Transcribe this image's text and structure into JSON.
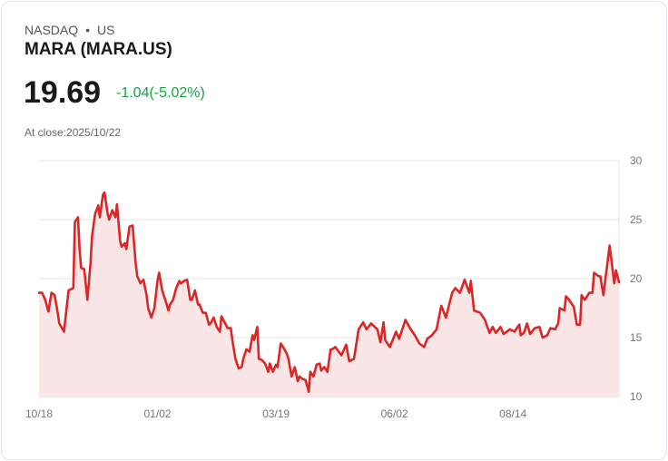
{
  "header": {
    "exchange": "NASDAQ",
    "separator": "•",
    "region": "US",
    "title": "MARA (MARA.US)",
    "price": "19.69",
    "change": "-1.04(-5.02%)",
    "close_label": "At close:2025/10/22"
  },
  "colors": {
    "line": "#dc2626",
    "fill": "#fae6e6",
    "change": "#16a34a",
    "grid": "#e3e3e3"
  },
  "chart_data": {
    "type": "area",
    "title": "MARA (MARA.US)",
    "xlabel": "",
    "ylabel": "",
    "x_unit": "days since 10/18",
    "xlim": [
      0,
      372
    ],
    "ylim": [
      10,
      30
    ],
    "yticks": [
      10,
      15,
      20,
      25,
      30
    ],
    "xticks": [
      {
        "day": 0,
        "label": "10/18"
      },
      {
        "day": 76,
        "label": "01/02"
      },
      {
        "day": 152,
        "label": "03/19"
      },
      {
        "day": 228,
        "label": "06/02"
      },
      {
        "day": 304,
        "label": "08/14"
      }
    ],
    "grid": true,
    "points": [
      [
        0,
        18.8
      ],
      [
        2,
        18.8
      ],
      [
        4,
        18.2
      ],
      [
        6,
        17.2
      ],
      [
        8,
        18.8
      ],
      [
        10,
        18.6
      ],
      [
        12,
        17.1
      ],
      [
        13,
        16.2
      ],
      [
        16,
        15.5
      ],
      [
        17,
        16.7
      ],
      [
        19,
        19
      ],
      [
        22,
        19.2
      ],
      [
        23,
        24.8
      ],
      [
        25,
        25.2
      ],
      [
        26,
        22.5
      ],
      [
        27,
        20.9
      ],
      [
        29,
        20.8
      ],
      [
        31,
        18.2
      ],
      [
        33,
        21.3
      ],
      [
        34,
        23.6
      ],
      [
        36,
        25.5
      ],
      [
        38,
        26.2
      ],
      [
        39,
        25.2
      ],
      [
        41,
        27.1
      ],
      [
        42,
        27.3
      ],
      [
        44,
        25.5
      ],
      [
        45,
        25
      ],
      [
        47,
        25.8
      ],
      [
        49,
        25.2
      ],
      [
        50,
        26.3
      ],
      [
        52,
        23.2
      ],
      [
        53,
        22.7
      ],
      [
        55,
        23
      ],
      [
        56,
        22.5
      ],
      [
        58,
        24.4
      ],
      [
        60,
        24.5
      ],
      [
        62,
        21.3
      ],
      [
        63,
        20.2
      ],
      [
        65,
        19.6
      ],
      [
        67,
        19.9
      ],
      [
        69,
        18.6
      ],
      [
        70,
        17.5
      ],
      [
        72,
        16.7
      ],
      [
        74,
        17.5
      ],
      [
        76,
        19.8
      ],
      [
        77,
        20.5
      ],
      [
        79,
        19
      ],
      [
        81,
        18.2
      ],
      [
        83,
        17.3
      ],
      [
        84,
        17.8
      ],
      [
        86,
        18.2
      ],
      [
        88,
        19.2
      ],
      [
        90,
        19.8
      ],
      [
        91,
        19.6
      ],
      [
        93,
        19.8
      ],
      [
        95,
        19.9
      ],
      [
        97,
        18.2
      ],
      [
        98,
        18.2
      ],
      [
        100,
        19
      ],
      [
        102,
        17.8
      ],
      [
        103,
        17.8
      ],
      [
        105,
        17.1
      ],
      [
        107,
        17.1
      ],
      [
        109,
        16.1
      ],
      [
        110,
        16.2
      ],
      [
        112,
        16.7
      ],
      [
        114,
        15.9
      ],
      [
        116,
        15.5
      ],
      [
        117,
        16.8
      ],
      [
        119,
        16.3
      ],
      [
        121,
        15.8
      ],
      [
        123,
        15.8
      ],
      [
        124,
        14.8
      ],
      [
        126,
        13.2
      ],
      [
        128,
        12.4
      ],
      [
        130,
        12.5
      ],
      [
        131,
        13.2
      ],
      [
        133,
        14
      ],
      [
        135,
        13.8
      ],
      [
        137,
        15.2
      ],
      [
        138,
        14.8
      ],
      [
        140,
        15.9
      ],
      [
        141,
        13.2
      ],
      [
        143,
        13.1
      ],
      [
        145,
        12.8
      ],
      [
        147,
        12.1
      ],
      [
        148,
        12.8
      ],
      [
        150,
        12.1
      ],
      [
        152,
        12.7
      ],
      [
        153,
        12.5
      ],
      [
        155,
        14.5
      ],
      [
        157,
        14.1
      ],
      [
        159,
        13.6
      ],
      [
        160,
        13.2
      ],
      [
        162,
        11.7
      ],
      [
        164,
        12.5
      ],
      [
        166,
        11.3
      ],
      [
        167,
        11.7
      ],
      [
        169,
        11.5
      ],
      [
        171,
        11.4
      ],
      [
        173,
        10.4
      ],
      [
        174,
        12.1
      ],
      [
        176,
        11.7
      ],
      [
        178,
        12.7
      ],
      [
        180,
        12.8
      ],
      [
        181,
        12.2
      ],
      [
        183,
        12.5
      ],
      [
        185,
        12.1
      ],
      [
        187,
        14
      ],
      [
        188,
        14
      ],
      [
        190,
        14.2
      ],
      [
        194,
        13.5
      ],
      [
        197,
        14.4
      ],
      [
        199,
        13
      ],
      [
        202,
        13.2
      ],
      [
        205,
        15.7
      ],
      [
        208,
        16.3
      ],
      [
        210,
        15.7
      ],
      [
        213,
        16.2
      ],
      [
        217,
        15.7
      ],
      [
        219,
        14.6
      ],
      [
        221,
        16.3
      ],
      [
        222,
        14.8
      ],
      [
        225,
        14.2
      ],
      [
        229,
        15.5
      ],
      [
        231,
        14.9
      ],
      [
        235,
        16.5
      ],
      [
        238,
        15.8
      ],
      [
        241,
        15.2
      ],
      [
        244,
        14.5
      ],
      [
        247,
        14.2
      ],
      [
        249,
        14.9
      ],
      [
        252,
        15.2
      ],
      [
        255,
        15.7
      ],
      [
        258,
        17.7
      ],
      [
        261,
        16.7
      ],
      [
        265,
        18.8
      ],
      [
        267,
        19.2
      ],
      [
        270,
        18.8
      ],
      [
        273,
        19.9
      ],
      [
        276,
        18.8
      ],
      [
        277,
        19.8
      ],
      [
        279,
        17.3
      ],
      [
        283,
        17.1
      ],
      [
        286,
        16.5
      ],
      [
        289,
        15.4
      ],
      [
        291,
        15.9
      ],
      [
        293,
        15.4
      ],
      [
        296,
        15.9
      ],
      [
        298,
        15.3
      ],
      [
        302,
        15.7
      ],
      [
        305,
        15.5
      ],
      [
        308,
        16.1
      ],
      [
        309,
        15.2
      ],
      [
        311,
        15.4
      ],
      [
        313,
        16.2
      ],
      [
        315,
        15.3
      ],
      [
        318,
        15.8
      ],
      [
        321,
        15.9
      ],
      [
        323,
        15
      ],
      [
        326,
        15.2
      ],
      [
        328,
        15.8
      ],
      [
        331,
        15.7
      ],
      [
        333,
        16.2
      ],
      [
        334,
        17.5
      ],
      [
        337,
        17.3
      ],
      [
        338,
        18.5
      ],
      [
        340,
        18.2
      ],
      [
        343,
        17.6
      ],
      [
        345,
        16.1
      ],
      [
        347,
        16.1
      ],
      [
        348,
        18.6
      ],
      [
        350,
        18.2
      ],
      [
        353,
        18.8
      ],
      [
        355,
        18.8
      ],
      [
        356,
        20.5
      ],
      [
        359,
        20.2
      ],
      [
        360,
        20.2
      ],
      [
        362,
        18.6
      ],
      [
        366,
        22.8
      ],
      [
        369,
        19.6
      ],
      [
        370,
        20.7
      ],
      [
        372,
        19.69
      ]
    ]
  }
}
